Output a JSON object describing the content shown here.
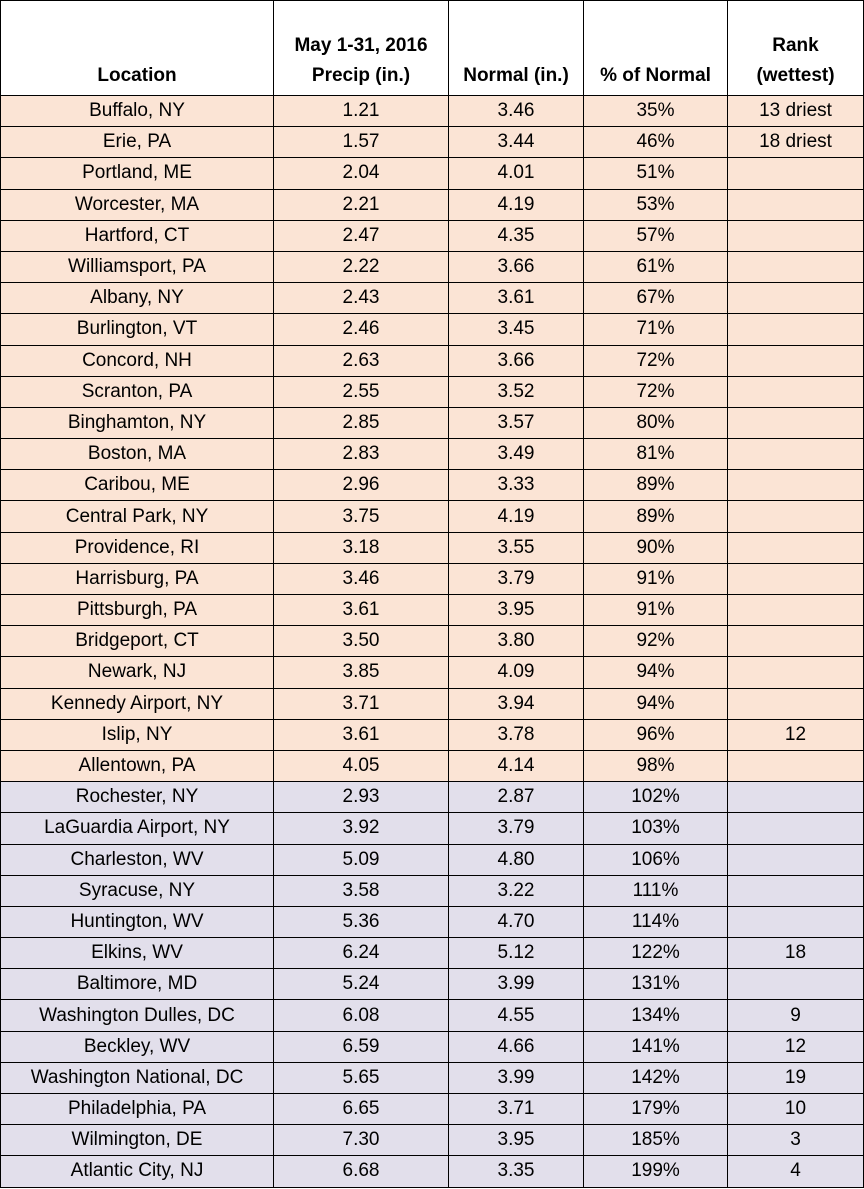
{
  "table": {
    "header": [
      [
        "Location"
      ],
      [
        "May 1-31, 2016",
        "Precip (in.)"
      ],
      [
        "Normal (in.)"
      ],
      [
        "% of Normal"
      ],
      [
        "Rank",
        "(wettest)"
      ]
    ],
    "sections": [
      {
        "color": "#fbe4d5",
        "rows": [
          [
            "Buffalo, NY",
            "1.21",
            "3.46",
            "35%",
            "13 driest"
          ],
          [
            "Erie, PA",
            "1.57",
            "3.44",
            "46%",
            "18 driest"
          ],
          [
            "Portland, ME",
            "2.04",
            "4.01",
            "51%",
            null
          ],
          [
            "Worcester, MA",
            "2.21",
            "4.19",
            "53%",
            null
          ],
          [
            "Hartford, CT",
            "2.47",
            "4.35",
            "57%",
            null
          ],
          [
            "Williamsport, PA",
            "2.22",
            "3.66",
            "61%",
            null
          ],
          [
            "Albany, NY",
            "2.43",
            "3.61",
            "67%",
            null
          ],
          [
            "Burlington, VT",
            "2.46",
            "3.45",
            "71%",
            null
          ],
          [
            "Concord, NH",
            "2.63",
            "3.66",
            "72%",
            null
          ],
          [
            "Scranton, PA",
            "2.55",
            "3.52",
            "72%",
            null
          ],
          [
            "Binghamton, NY",
            "2.85",
            "3.57",
            "80%",
            null
          ],
          [
            "Boston, MA",
            "2.83",
            "3.49",
            "81%",
            null
          ],
          [
            "Caribou, ME",
            "2.96",
            "3.33",
            "89%",
            null
          ],
          [
            "Central Park, NY",
            "3.75",
            "4.19",
            "89%",
            null
          ],
          [
            "Providence, RI",
            "3.18",
            "3.55",
            "90%",
            null
          ],
          [
            "Harrisburg, PA",
            "3.46",
            "3.79",
            "91%",
            null
          ],
          [
            "Pittsburgh, PA",
            "3.61",
            "3.95",
            "91%",
            null
          ],
          [
            "Bridgeport, CT",
            "3.50",
            "3.80",
            "92%",
            null
          ],
          [
            "Newark, NJ",
            "3.85",
            "4.09",
            "94%",
            null
          ],
          [
            "Kennedy Airport, NY",
            "3.71",
            "3.94",
            "94%",
            null
          ],
          [
            "Islip, NY",
            "3.61",
            "3.78",
            "96%",
            "12"
          ],
          [
            "Allentown, PA",
            "4.05",
            "4.14",
            "98%",
            null
          ]
        ]
      },
      {
        "color": "#e2dfeb",
        "rows": [
          [
            "Rochester, NY",
            "2.93",
            "2.87",
            "102%",
            null
          ],
          [
            "LaGuardia Airport, NY",
            "3.92",
            "3.79",
            "103%",
            null
          ],
          [
            "Charleston, WV",
            "5.09",
            "4.80",
            "106%",
            null
          ],
          [
            "Syracuse, NY",
            "3.58",
            "3.22",
            "111%",
            null
          ],
          [
            "Huntington, WV",
            "5.36",
            "4.70",
            "114%",
            null
          ],
          [
            "Elkins, WV",
            "6.24",
            "5.12",
            "122%",
            "18"
          ],
          [
            "Baltimore, MD",
            "5.24",
            "3.99",
            "131%",
            null
          ],
          [
            "Washington Dulles, DC",
            "6.08",
            "4.55",
            "134%",
            "9"
          ],
          [
            "Beckley, WV",
            "6.59",
            "4.66",
            "141%",
            "12"
          ],
          [
            "Washington National, DC",
            "5.65",
            "3.99",
            "142%",
            "19"
          ],
          [
            "Philadelphia, PA",
            "6.65",
            "3.71",
            "179%",
            "10"
          ],
          [
            "Wilmington, DE",
            "7.30",
            "3.95",
            "185%",
            "3"
          ],
          [
            "Atlantic City, NJ",
            "6.68",
            "3.35",
            "199%",
            "4"
          ]
        ]
      }
    ]
  }
}
